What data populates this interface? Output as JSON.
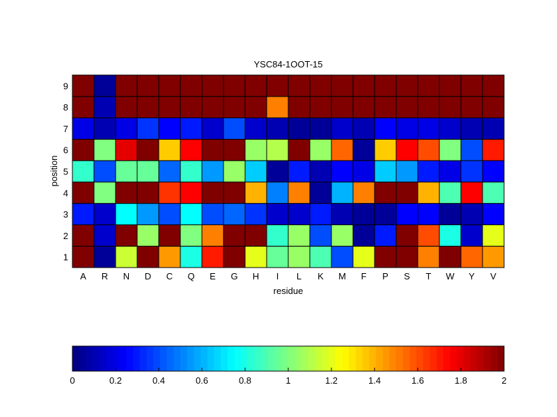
{
  "chart_data": {
    "type": "heatmap",
    "title": "YSC84-1OOT-15",
    "xlabel": "residue",
    "ylabel": "position",
    "x_categories": [
      "A",
      "R",
      "N",
      "D",
      "C",
      "Q",
      "E",
      "G",
      "H",
      "I",
      "L",
      "K",
      "M",
      "F",
      "P",
      "S",
      "T",
      "W",
      "Y",
      "V"
    ],
    "y_categories": [
      "1",
      "2",
      "3",
      "4",
      "5",
      "6",
      "7",
      "8",
      "9"
    ],
    "values": [
      [
        2.0,
        0.05,
        1.15,
        2.0,
        1.45,
        0.8,
        1.7,
        2.0,
        1.2,
        0.95,
        1.05,
        0.9,
        0.4,
        1.2,
        2.0,
        2.0,
        1.5,
        2.0,
        1.55,
        1.45
      ],
      [
        2.0,
        0.15,
        2.0,
        1.05,
        2.0,
        1.0,
        1.5,
        2.0,
        2.0,
        0.85,
        1.05,
        0.4,
        1.05,
        0.05,
        0.3,
        2.0,
        1.6,
        0.8,
        0.15,
        1.2
      ],
      [
        0.3,
        0.15,
        0.75,
        0.55,
        0.4,
        0.75,
        0.4,
        0.45,
        0.35,
        0.15,
        0.15,
        0.3,
        0.1,
        0.05,
        0.05,
        0.25,
        0.25,
        0.05,
        0.1,
        0.25
      ],
      [
        2.0,
        1.0,
        2.0,
        2.0,
        1.65,
        1.75,
        2.0,
        2.0,
        1.4,
        0.5,
        1.5,
        0.05,
        0.6,
        1.5,
        2.0,
        2.0,
        1.4,
        0.9,
        1.75,
        0.9
      ],
      [
        0.85,
        0.4,
        0.95,
        0.95,
        0.45,
        0.85,
        0.55,
        1.05,
        0.65,
        0.05,
        0.3,
        0.1,
        0.25,
        0.2,
        0.65,
        0.55,
        0.3,
        0.2,
        0.35,
        0.25
      ],
      [
        2.0,
        1.0,
        1.8,
        2.0,
        1.35,
        1.75,
        2.0,
        2.0,
        1.05,
        1.1,
        2.0,
        1.05,
        1.55,
        0.05,
        1.35,
        1.75,
        1.6,
        1.0,
        0.4,
        1.7
      ],
      [
        0.2,
        0.1,
        0.2,
        0.35,
        0.25,
        0.3,
        0.15,
        0.4,
        0.15,
        0.1,
        0.05,
        0.05,
        0.15,
        0.1,
        0.25,
        0.2,
        0.2,
        0.15,
        0.1,
        0.1
      ],
      [
        2.0,
        0.1,
        2.0,
        2.0,
        2.0,
        2.0,
        2.0,
        2.0,
        2.0,
        1.5,
        2.0,
        2.0,
        2.0,
        2.0,
        2.0,
        2.0,
        2.0,
        2.0,
        2.0,
        2.0
      ],
      [
        2.0,
        0.05,
        2.0,
        2.0,
        2.0,
        2.0,
        2.0,
        2.0,
        2.0,
        2.0,
        2.0,
        2.0,
        2.0,
        2.0,
        2.0,
        2.0,
        2.0,
        2.0,
        2.0,
        2.0
      ]
    ],
    "colormap": "jet",
    "clim": [
      0,
      2
    ],
    "colorbar": {
      "placement": "bottom",
      "ticks": [
        "0",
        "0.2",
        "0.4",
        "0.6",
        "0.8",
        "1",
        "1.2",
        "1.4",
        "1.6",
        "1.8",
        "2"
      ]
    }
  }
}
